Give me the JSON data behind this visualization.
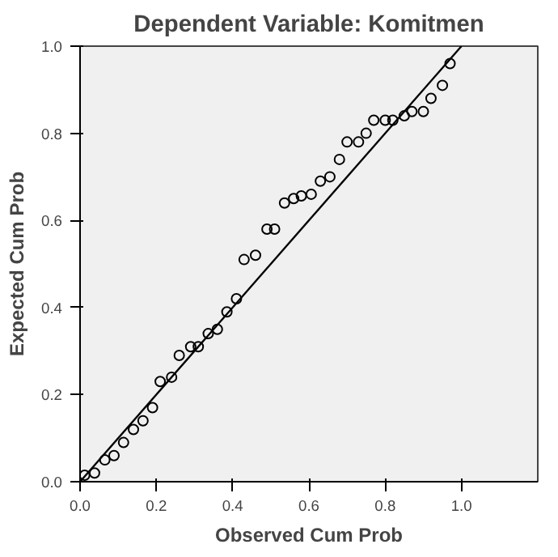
{
  "chart_data": {
    "type": "scatter",
    "title": "Dependent Variable: Komitmen",
    "xlabel": "Observed Cum Prob",
    "ylabel": "Expected Cum Prob",
    "xlim": [
      0,
      1.2
    ],
    "ylim": [
      0,
      1.0
    ],
    "xticks": [
      {
        "value": 0,
        "label": "0.0"
      },
      {
        "value": 0.2,
        "label": "0.2"
      },
      {
        "value": 0.4,
        "label": "0.4"
      },
      {
        "value": 0.6,
        "label": "0.6"
      },
      {
        "value": 0.8,
        "label": "0.8"
      },
      {
        "value": 1.0,
        "label": "1.0"
      }
    ],
    "yticks": [
      {
        "value": 0,
        "label": "0.0"
      },
      {
        "value": 0.2,
        "label": "0.2"
      },
      {
        "value": 0.4,
        "label": "0.4"
      },
      {
        "value": 0.6,
        "label": "0.6"
      },
      {
        "value": 0.8,
        "label": "0.8"
      },
      {
        "value": 1.0,
        "label": "1.0"
      }
    ],
    "grid": false,
    "series": [
      {
        "marker": "circle",
        "color": "#000000",
        "x": [
          0.012,
          0.038,
          0.065,
          0.089,
          0.114,
          0.14,
          0.165,
          0.19,
          0.21,
          0.24,
          0.26,
          0.29,
          0.31,
          0.336,
          0.36,
          0.385,
          0.41,
          0.43,
          0.46,
          0.49,
          0.51,
          0.536,
          0.56,
          0.58,
          0.606,
          0.63,
          0.655,
          0.68,
          0.7,
          0.73,
          0.75,
          0.77,
          0.8,
          0.82,
          0.85,
          0.87,
          0.9,
          0.92,
          0.95,
          0.97
        ],
        "values": [
          0.015,
          0.02,
          0.05,
          0.06,
          0.09,
          0.12,
          0.14,
          0.17,
          0.23,
          0.24,
          0.29,
          0.31,
          0.31,
          0.34,
          0.35,
          0.39,
          0.42,
          0.51,
          0.52,
          0.58,
          0.58,
          0.64,
          0.65,
          0.656,
          0.66,
          0.69,
          0.7,
          0.74,
          0.78,
          0.78,
          0.8,
          0.83,
          0.83,
          0.83,
          0.84,
          0.85,
          0.85,
          0.88,
          0.91,
          0.96
        ]
      },
      {
        "type": "line",
        "color": "#000000",
        "x": [
          0,
          1
        ],
        "values": [
          0,
          1
        ]
      }
    ]
  }
}
